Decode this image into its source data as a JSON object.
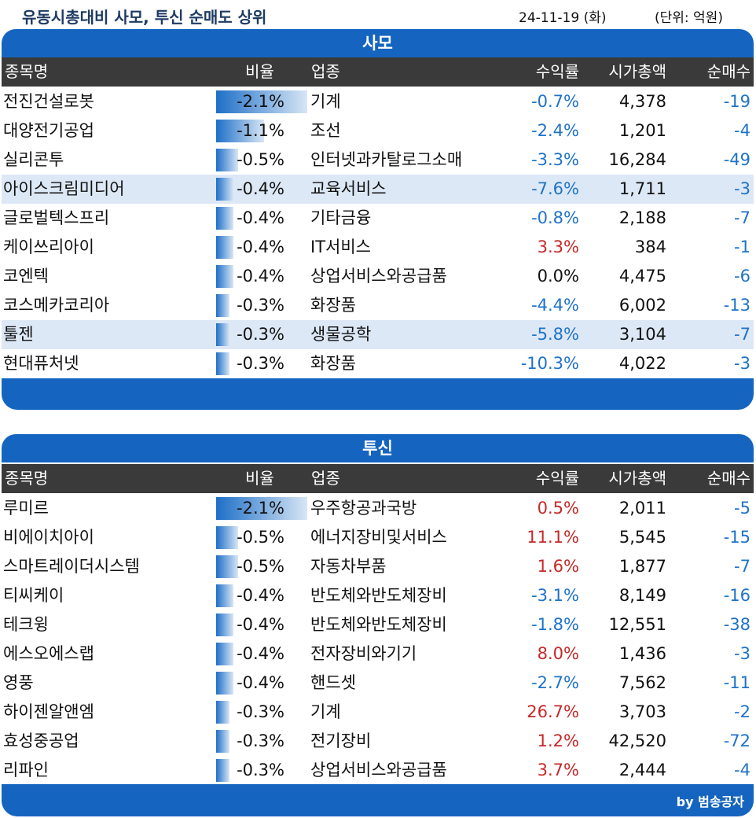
{
  "header": {
    "title": "유동시총대비 사모, 투신 순매도 상위",
    "date": "24-11-19 (화)",
    "unit": "(단위: 억원)"
  },
  "columns": {
    "name": "종목명",
    "ratio": "비율",
    "sector": "업종",
    "return": "수익률",
    "market_cap": "시가총액",
    "net_sell": "순매수"
  },
  "colors": {
    "panel_blue": "#1565c0",
    "header_dark": "#3a3a3a",
    "negative": "#1e73c8",
    "positive": "#c62828",
    "highlight": "#dde8f6"
  },
  "samo": {
    "title": "사모",
    "rows": [
      {
        "name": "전진건설로봇",
        "ratio": "-2.1%",
        "ratio_value": 2.1,
        "sector": "기계",
        "ret": "-0.7%",
        "cap": "4,378",
        "net": "-19",
        "hl": false
      },
      {
        "name": "대양전기공업",
        "ratio": "-1.1%",
        "ratio_value": 1.1,
        "sector": "조선",
        "ret": "-2.4%",
        "cap": "1,201",
        "net": "-4",
        "hl": false
      },
      {
        "name": "실리콘투",
        "ratio": "-0.5%",
        "ratio_value": 0.5,
        "sector": "인터넷과카탈로그소매",
        "ret": "-3.3%",
        "cap": "16,284",
        "net": "-49",
        "hl": false
      },
      {
        "name": "아이스크림미디어",
        "ratio": "-0.4%",
        "ratio_value": 0.4,
        "sector": "교육서비스",
        "ret": "-7.6%",
        "cap": "1,711",
        "net": "-3",
        "hl": true
      },
      {
        "name": "글로벌텍스프리",
        "ratio": "-0.4%",
        "ratio_value": 0.4,
        "sector": "기타금융",
        "ret": "-0.8%",
        "cap": "2,188",
        "net": "-7",
        "hl": false
      },
      {
        "name": "케이쓰리아이",
        "ratio": "-0.4%",
        "ratio_value": 0.4,
        "sector": "IT서비스",
        "ret": "3.3%",
        "cap": "384",
        "net": "-1",
        "hl": false
      },
      {
        "name": "코엔텍",
        "ratio": "-0.4%",
        "ratio_value": 0.4,
        "sector": "상업서비스와공급품",
        "ret": "0.0%",
        "cap": "4,475",
        "net": "-6",
        "hl": false
      },
      {
        "name": "코스메카코리아",
        "ratio": "-0.3%",
        "ratio_value": 0.3,
        "sector": "화장품",
        "ret": "-4.4%",
        "cap": "6,002",
        "net": "-13",
        "hl": false
      },
      {
        "name": "툴젠",
        "ratio": "-0.3%",
        "ratio_value": 0.3,
        "sector": "생물공학",
        "ret": "-5.8%",
        "cap": "3,104",
        "net": "-7",
        "hl": true
      },
      {
        "name": "현대퓨처넷",
        "ratio": "-0.3%",
        "ratio_value": 0.3,
        "sector": "화장품",
        "ret": "-10.3%",
        "cap": "4,022",
        "net": "-3",
        "hl": false
      }
    ]
  },
  "tusin": {
    "title": "투신",
    "rows": [
      {
        "name": "루미르",
        "ratio": "-2.1%",
        "ratio_value": 2.1,
        "sector": "우주항공과국방",
        "ret": "0.5%",
        "cap": "2,011",
        "net": "-5",
        "hl": false
      },
      {
        "name": "비에이치아이",
        "ratio": "-0.5%",
        "ratio_value": 0.5,
        "sector": "에너지장비및서비스",
        "ret": "11.1%",
        "cap": "5,545",
        "net": "-15",
        "hl": false
      },
      {
        "name": "스마트레이더시스템",
        "ratio": "-0.5%",
        "ratio_value": 0.5,
        "sector": "자동차부품",
        "ret": "1.6%",
        "cap": "1,877",
        "net": "-7",
        "hl": false
      },
      {
        "name": "티씨케이",
        "ratio": "-0.4%",
        "ratio_value": 0.4,
        "sector": "반도체와반도체장비",
        "ret": "-3.1%",
        "cap": "8,149",
        "net": "-16",
        "hl": false
      },
      {
        "name": "테크윙",
        "ratio": "-0.4%",
        "ratio_value": 0.4,
        "sector": "반도체와반도체장비",
        "ret": "-1.8%",
        "cap": "12,551",
        "net": "-38",
        "hl": false
      },
      {
        "name": "에스오에스랩",
        "ratio": "-0.4%",
        "ratio_value": 0.4,
        "sector": "전자장비와기기",
        "ret": "8.0%",
        "cap": "1,436",
        "net": "-3",
        "hl": false
      },
      {
        "name": "영풍",
        "ratio": "-0.4%",
        "ratio_value": 0.4,
        "sector": "핸드셋",
        "ret": "-2.7%",
        "cap": "7,562",
        "net": "-11",
        "hl": false
      },
      {
        "name": "하이젠알앤엠",
        "ratio": "-0.3%",
        "ratio_value": 0.3,
        "sector": "기계",
        "ret": "26.7%",
        "cap": "3,703",
        "net": "-2",
        "hl": false
      },
      {
        "name": "효성중공업",
        "ratio": "-0.3%",
        "ratio_value": 0.3,
        "sector": "전기장비",
        "ret": "1.2%",
        "cap": "42,520",
        "net": "-72",
        "hl": false
      },
      {
        "name": "리파인",
        "ratio": "-0.3%",
        "ratio_value": 0.3,
        "sector": "상업서비스와공급품",
        "ret": "3.7%",
        "cap": "2,444",
        "net": "-4",
        "hl": false
      }
    ]
  },
  "footer": {
    "byline": "by 범송공자"
  }
}
